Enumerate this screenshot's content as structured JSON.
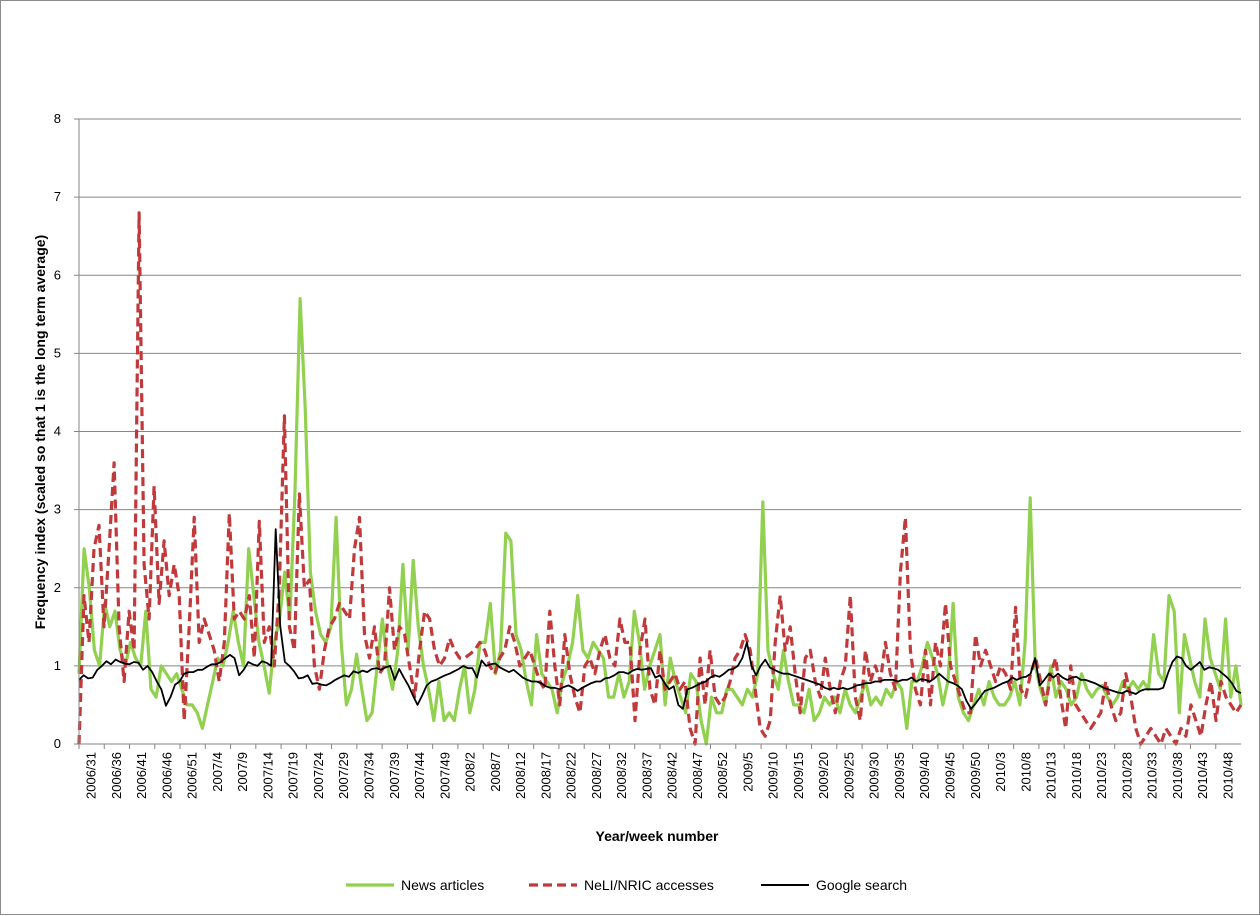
{
  "chart_data": {
    "type": "line",
    "title": "",
    "xlabel": "Year/week number",
    "ylabel": "Frequency index (scaled so that 1 is the long term average)",
    "ylim": [
      0,
      8
    ],
    "yticks": [
      "0",
      "1",
      "2",
      "3",
      "4",
      "5",
      "6",
      "7",
      "8"
    ],
    "grid": "horizontal",
    "legend_position": "bottom",
    "xtick_labels": [
      "2006/31",
      "2006/36",
      "2006/41",
      "2006/46",
      "2006/51",
      "2007/4",
      "2007/9",
      "2007/14",
      "2007/19",
      "2007/24",
      "2007/29",
      "2007/34",
      "2007/39",
      "2007/44",
      "2007/49",
      "2008/2",
      "2008/7",
      "2008/12",
      "2008/17",
      "2008/22",
      "2008/27",
      "2008/32",
      "2008/37",
      "2008/42",
      "2008/47",
      "2008/52",
      "2009/5",
      "2009/10",
      "2009/15",
      "2009/20",
      "2009/25",
      "2009/30",
      "2009/35",
      "2009/40",
      "2009/45",
      "2009/50",
      "2010/3",
      "2010/8",
      "2010/13",
      "2010/18",
      "2010/23",
      "2010/28",
      "2010/33",
      "2010/38",
      "2010/43",
      "2010/48"
    ],
    "series": [
      {
        "name": "News articles",
        "color": "#92d050",
        "style": "solid",
        "values": [
          0.9,
          2.5,
          2.0,
          1.2,
          1.0,
          1.8,
          1.5,
          1.7,
          1.2,
          1.0,
          1.3,
          1.1,
          1.0,
          1.7,
          0.7,
          0.6,
          1.0,
          0.9,
          0.8,
          0.9,
          0.7,
          0.5,
          0.5,
          0.4,
          0.2,
          0.5,
          0.8,
          1.1,
          1.0,
          1.3,
          1.7,
          1.3,
          1.0,
          2.5,
          1.9,
          1.3,
          1.0,
          0.65,
          1.3,
          1.6,
          2.2,
          1.6,
          3.2,
          5.7,
          4.3,
          2.2,
          1.7,
          1.4,
          1.3,
          1.5,
          2.9,
          1.3,
          0.5,
          0.7,
          1.15,
          0.7,
          0.3,
          0.4,
          1.0,
          1.6,
          1.0,
          0.7,
          1.2,
          2.3,
          1.2,
          2.35,
          1.5,
          1.0,
          0.7,
          0.3,
          0.8,
          0.3,
          0.4,
          0.3,
          0.7,
          1.0,
          0.4,
          0.7,
          1.3,
          1.3,
          1.8,
          0.9,
          1.2,
          2.7,
          2.6,
          1.4,
          1.2,
          0.8,
          0.5,
          1.4,
          0.9,
          0.8,
          0.7,
          0.4,
          0.8,
          1.0,
          1.3,
          1.9,
          1.2,
          1.1,
          1.3,
          1.2,
          1.1,
          0.6,
          0.6,
          0.9,
          0.6,
          0.8,
          1.7,
          1.3,
          0.7,
          1.0,
          1.2,
          1.4,
          0.5,
          1.1,
          0.8,
          0.6,
          0.4,
          0.9,
          0.8,
          0.3,
          0.0,
          0.6,
          0.4,
          0.4,
          0.7,
          0.7,
          0.6,
          0.5,
          0.7,
          0.6,
          0.9,
          3.1,
          1.2,
          0.9,
          0.7,
          1.2,
          0.8,
          0.5,
          0.5,
          0.4,
          0.7,
          0.3,
          0.4,
          0.6,
          0.5,
          0.6,
          0.4,
          0.7,
          0.5,
          0.4,
          0.6,
          0.8,
          0.5,
          0.6,
          0.5,
          0.7,
          0.6,
          0.8,
          0.7,
          0.2,
          0.8,
          0.8,
          1.0,
          1.3,
          1.1,
          0.9,
          0.5,
          0.8,
          1.8,
          0.6,
          0.4,
          0.3,
          0.5,
          0.7,
          0.5,
          0.8,
          0.6,
          0.5,
          0.5,
          0.6,
          0.8,
          0.5,
          1.3,
          3.15,
          1.0,
          0.7,
          0.5,
          1.0,
          0.6,
          0.8,
          0.7,
          0.5,
          0.6,
          0.9,
          0.7,
          0.6,
          0.7,
          0.75,
          0.6,
          0.5,
          0.6,
          0.8,
          0.7,
          0.8,
          0.7,
          0.8,
          0.7,
          1.4,
          0.9,
          0.8,
          1.9,
          1.7,
          0.4,
          1.4,
          1.1,
          0.8,
          0.6,
          1.6,
          1.1,
          0.9,
          0.7,
          1.6,
          0.6,
          1.0,
          0.5
        ]
      },
      {
        "name": "NeLI/NRIC accesses",
        "color": "#c0393b",
        "style": "dashed",
        "values": [
          0.0,
          1.9,
          1.3,
          2.5,
          2.8,
          1.5,
          2.5,
          3.6,
          1.5,
          0.8,
          1.7,
          1.2,
          6.8,
          2.3,
          1.6,
          3.3,
          1.8,
          2.6,
          1.9,
          2.3,
          1.9,
          0.3,
          1.5,
          2.9,
          1.3,
          1.6,
          1.4,
          1.2,
          0.8,
          1.3,
          2.95,
          1.6,
          1.7,
          1.6,
          1.9,
          1.1,
          2.85,
          1.3,
          1.5,
          1.0,
          2.0,
          4.2,
          1.5,
          1.2,
          3.2,
          2.0,
          2.1,
          1.0,
          0.7,
          1.2,
          1.5,
          1.6,
          1.8,
          1.7,
          1.6,
          2.5,
          2.9,
          1.4,
          1.1,
          1.5,
          0.9,
          1.0,
          2.0,
          1.2,
          1.5,
          1.4,
          1.0,
          0.6,
          1.2,
          1.7,
          1.6,
          1.2,
          1.0,
          1.1,
          1.35,
          1.2,
          1.1,
          1.1,
          1.15,
          1.2,
          1.3,
          1.2,
          1.0,
          0.9,
          1.1,
          1.2,
          1.5,
          1.3,
          1.0,
          1.1,
          1.2,
          1.0,
          0.8,
          0.7,
          1.7,
          1.0,
          0.5,
          1.4,
          0.9,
          0.6,
          0.4,
          1.0,
          1.1,
          0.9,
          1.2,
          1.4,
          1.1,
          1.0,
          1.6,
          1.3,
          1.3,
          0.3,
          1.2,
          1.6,
          0.7,
          0.5,
          1.2,
          0.7,
          0.8,
          0.9,
          0.7,
          0.8,
          0.2,
          0.0,
          1.1,
          0.5,
          1.2,
          0.6,
          0.5,
          0.6,
          0.8,
          1.1,
          1.2,
          1.4,
          1.2,
          0.7,
          0.2,
          0.1,
          0.3,
          1.3,
          1.9,
          1.2,
          1.5,
          0.9,
          0.4,
          1.1,
          1.2,
          0.8,
          0.6,
          1.1,
          0.7,
          0.4,
          0.8,
          1.0,
          1.9,
          0.6,
          0.3,
          1.2,
          0.8,
          1.0,
          0.8,
          1.3,
          0.9,
          0.7,
          2.2,
          2.9,
          1.2,
          0.7,
          0.5,
          1.2,
          0.5,
          1.3,
          1.0,
          1.8,
          1.0,
          0.8,
          0.6,
          0.4,
          0.4,
          1.4,
          1.0,
          1.2,
          1.0,
          0.8,
          1.0,
          0.9,
          0.7,
          1.75,
          0.7,
          0.6,
          0.9,
          1.1,
          0.8,
          0.5,
          0.9,
          1.1,
          0.6,
          0.2,
          1.0,
          0.5,
          0.4,
          0.3,
          0.2,
          0.3,
          0.4,
          0.8,
          0.5,
          0.3,
          0.4,
          0.9,
          0.6,
          0.2,
          0.0,
          0.1,
          0.2,
          0.1,
          0.0,
          0.2,
          0.1,
          0.0,
          0.2,
          0.1,
          0.5,
          0.3,
          0.1,
          0.5,
          0.8,
          0.3,
          0.8,
          0.6,
          0.5,
          0.4,
          0.5
        ]
      },
      {
        "name": "Google search",
        "color": "#000000",
        "style": "solid",
        "values": [
          0.82,
          0.88,
          0.84,
          0.85,
          0.95,
          1.0,
          1.06,
          1.02,
          1.08,
          1.05,
          1.03,
          1.02,
          1.05,
          1.04,
          0.95,
          1.0,
          0.92,
          0.8,
          0.7,
          0.49,
          0.6,
          0.76,
          0.8,
          0.9,
          0.92,
          0.92,
          0.95,
          0.95,
          0.99,
          1.02,
          1.02,
          1.05,
          1.1,
          1.14,
          1.1,
          0.88,
          0.95,
          1.05,
          1.02,
          1.0,
          1.06,
          1.04,
          1.0,
          2.75,
          1.5,
          1.05,
          1.0,
          0.93,
          0.84,
          0.85,
          0.88,
          0.77,
          0.78,
          0.76,
          0.75,
          0.78,
          0.82,
          0.85,
          0.88,
          0.86,
          0.93,
          0.91,
          0.94,
          0.92,
          0.96,
          0.97,
          0.95,
          0.98,
          1.0,
          0.82,
          0.96,
          0.85,
          0.75,
          0.62,
          0.5,
          0.62,
          0.75,
          0.8,
          0.82,
          0.85,
          0.88,
          0.9,
          0.93,
          0.96,
          1.0,
          0.97,
          0.97,
          0.85,
          1.07,
          1.0,
          1.02,
          1.03,
          0.98,
          0.95,
          0.92,
          0.95,
          0.9,
          0.85,
          0.82,
          0.8,
          0.8,
          0.78,
          0.74,
          0.72,
          0.72,
          0.7,
          0.73,
          0.75,
          0.72,
          0.68,
          0.72,
          0.75,
          0.78,
          0.8,
          0.8,
          0.84,
          0.85,
          0.88,
          0.92,
          0.92,
          0.9,
          0.94,
          0.96,
          0.95,
          0.96,
          0.97,
          0.85,
          0.88,
          0.78,
          0.7,
          0.74,
          0.5,
          0.45,
          0.7,
          0.72,
          0.75,
          0.78,
          0.8,
          0.85,
          0.88,
          0.86,
          0.9,
          0.95,
          0.96,
          1.0,
          1.1,
          1.3,
          1.0,
          0.88,
          1.0,
          1.08,
          0.98,
          0.95,
          0.92,
          0.9,
          0.9,
          0.88,
          0.86,
          0.84,
          0.82,
          0.8,
          0.78,
          0.76,
          0.72,
          0.7,
          0.72,
          0.7,
          0.72,
          0.7,
          0.72,
          0.75,
          0.76,
          0.78,
          0.78,
          0.8,
          0.8,
          0.82,
          0.82,
          0.82,
          0.8,
          0.82,
          0.82,
          0.85,
          0.8,
          0.83,
          0.82,
          0.8,
          0.84,
          0.9,
          0.85,
          0.8,
          0.78,
          0.75,
          0.7,
          0.55,
          0.45,
          0.52,
          0.6,
          0.68,
          0.7,
          0.72,
          0.75,
          0.78,
          0.8,
          0.85,
          0.82,
          0.85,
          0.86,
          0.9,
          1.1,
          0.75,
          0.82,
          0.9,
          0.85,
          0.9,
          0.85,
          0.82,
          0.85,
          0.86,
          0.82,
          0.82,
          0.8,
          0.78,
          0.75,
          0.72,
          0.7,
          0.68,
          0.66,
          0.65,
          0.68,
          0.66,
          0.64,
          0.68,
          0.7,
          0.7,
          0.7,
          0.7,
          0.72,
          0.9,
          1.05,
          1.12,
          1.1,
          1.0,
          0.95,
          1.0,
          1.05,
          0.95,
          0.98,
          0.97,
          0.95,
          0.9,
          0.85,
          0.78,
          0.68,
          0.65
        ]
      }
    ]
  }
}
